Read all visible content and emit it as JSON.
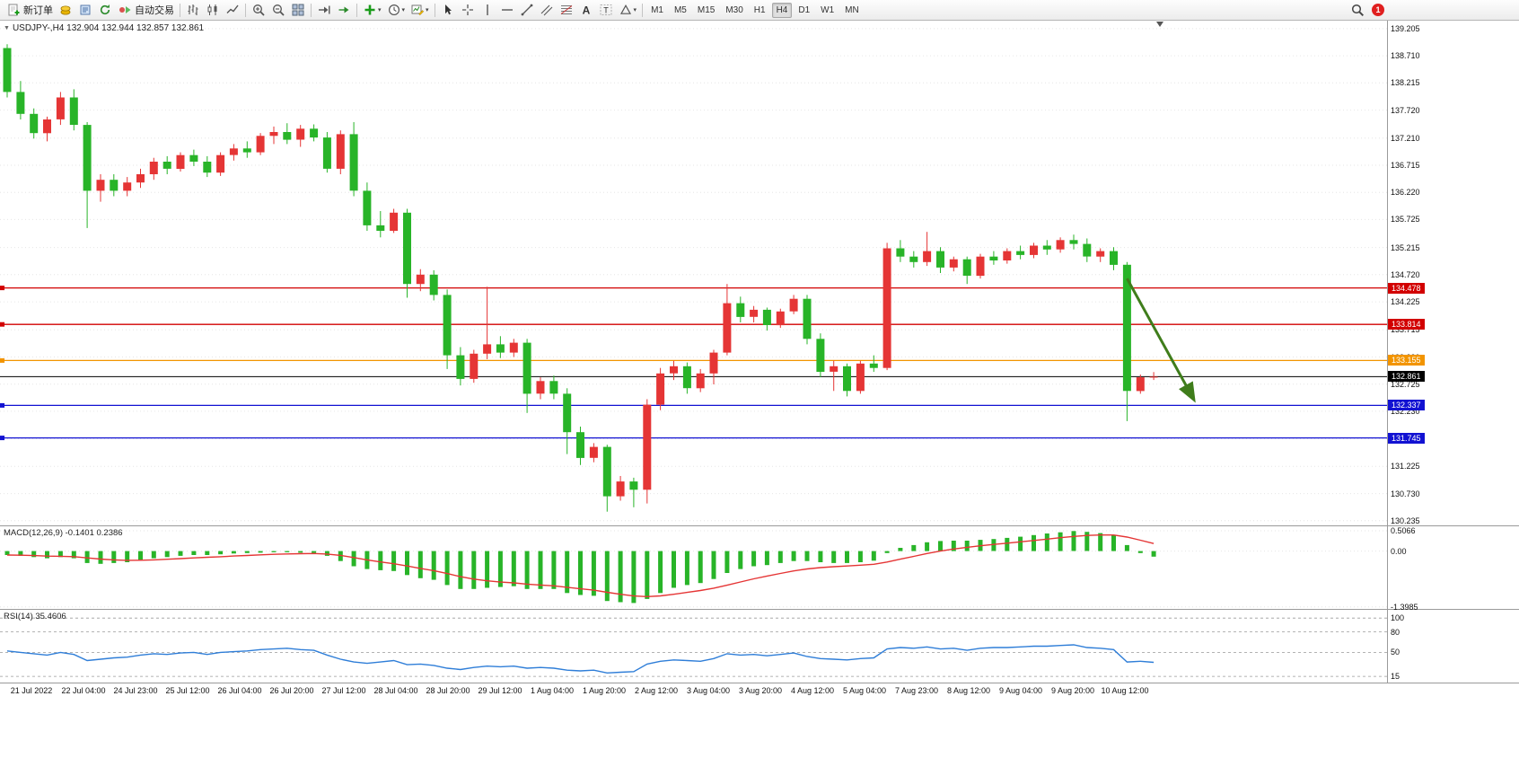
{
  "glyphs": {
    "dropdown_caret": "▾",
    "collapse_arrow": "▼"
  },
  "toolbar": {
    "groups": [
      {
        "name": "trading",
        "items": [
          {
            "name": "new-order-button",
            "icon": "doc-plus",
            "label": "新订单"
          },
          {
            "name": "market-watch-button",
            "icon": "coins"
          },
          {
            "name": "data-window-button",
            "icon": "doc-blue"
          },
          {
            "name": "refresh-button",
            "icon": "refresh"
          },
          {
            "name": "algo-trading-button",
            "icon": "algo",
            "label": "自动交易"
          }
        ]
      },
      {
        "name": "chart-type",
        "items": [
          {
            "name": "bar-chart-button",
            "icon": "bars"
          },
          {
            "name": "candle-chart-button",
            "icon": "candles"
          },
          {
            "name": "line-chart-button",
            "icon": "linechart"
          }
        ]
      },
      {
        "name": "zoom",
        "items": [
          {
            "name": "zoom-in-button",
            "icon": "zoom-in"
          },
          {
            "name": "zoom-out-button",
            "icon": "zoom-out"
          },
          {
            "name": "tile-windows-button",
            "icon": "tile"
          }
        ]
      },
      {
        "name": "scroll",
        "items": [
          {
            "name": "scroll-to-end-button",
            "icon": "scroll-end"
          },
          {
            "name": "auto-scroll-button",
            "icon": "auto-scroll"
          }
        ]
      },
      {
        "name": "chart-tools",
        "items": [
          {
            "name": "indicators-button",
            "icon": "indicator-plus",
            "dropdown": true
          },
          {
            "name": "periods-button",
            "icon": "clock",
            "dropdown": true
          },
          {
            "name": "templates-button",
            "icon": "template",
            "dropdown": true
          }
        ]
      },
      {
        "name": "objects",
        "items": [
          {
            "name": "cursor-button",
            "icon": "cursor"
          },
          {
            "name": "crosshair-button",
            "icon": "crosshair"
          },
          {
            "name": "vertical-line-button",
            "icon": "vline"
          },
          {
            "name": "horizontal-line-button",
            "icon": "hline"
          },
          {
            "name": "trendline-button",
            "icon": "trendline"
          },
          {
            "name": "equidistant-channel-button",
            "icon": "channel"
          },
          {
            "name": "fibonacci-button",
            "icon": "fibo"
          },
          {
            "name": "text-button",
            "icon": "textA"
          },
          {
            "name": "text-label-button",
            "icon": "textT"
          },
          {
            "name": "shapes-button",
            "icon": "shapes",
            "dropdown": true
          }
        ]
      }
    ],
    "timeframes": [
      "M1",
      "M5",
      "M15",
      "M30",
      "H1",
      "H4",
      "D1",
      "W1",
      "MN"
    ],
    "active_timeframe": "H4",
    "notification_count": "1"
  },
  "chart": {
    "title": "USDJPY-,H4 132.904 132.944 132.857 132.861",
    "macd_label": "MACD(12,26,9) -0.1401 0.2386",
    "rsi_label": "RSI(14) 35.4606"
  },
  "colors": {
    "bull": "#e53535",
    "bear": "#28b428",
    "macd_hist": "#28b428",
    "macd_signal": "#e53535",
    "rsi_line": "#2f7ed8",
    "line_red": "#d20000",
    "line_orange": "#f29400",
    "line_blue": "#1212d2",
    "price_black": "#000000",
    "arrow_green": "#3f7d1b",
    "grid": "#e6e6e6",
    "level_dash": "#9a9a9a",
    "separator": "#9a9a9a"
  },
  "chart_data": {
    "type": "candlestick",
    "symbol": "USDJPY-",
    "period": "H4",
    "current_ohlc": {
      "open": 132.904,
      "high": 132.944,
      "low": 132.857,
      "close": 132.861
    },
    "ylim": [
      130.15,
      139.35
    ],
    "y_ticks": [
      "139.205",
      "138.710",
      "138.215",
      "137.720",
      "137.210",
      "136.715",
      "136.220",
      "135.725",
      "135.215",
      "134.720",
      "134.225",
      "133.715",
      "133.220",
      "132.725",
      "132.230",
      "131.730",
      "131.225",
      "130.730",
      "130.235"
    ],
    "candles": [
      [
        138.85,
        138.92,
        137.95,
        138.05
      ],
      [
        138.05,
        138.25,
        137.55,
        137.65
      ],
      [
        137.65,
        137.75,
        137.2,
        137.3
      ],
      [
        137.3,
        137.6,
        137.15,
        137.55
      ],
      [
        137.55,
        138.05,
        137.45,
        137.95
      ],
      [
        137.95,
        138.1,
        137.35,
        137.45
      ],
      [
        137.45,
        137.5,
        135.57,
        136.25
      ],
      [
        136.25,
        136.55,
        136.05,
        136.45
      ],
      [
        136.45,
        136.55,
        136.15,
        136.25
      ],
      [
        136.25,
        136.5,
        136.15,
        136.4
      ],
      [
        136.4,
        136.65,
        136.3,
        136.55
      ],
      [
        136.55,
        136.85,
        136.45,
        136.78
      ],
      [
        136.78,
        136.88,
        136.55,
        136.65
      ],
      [
        136.65,
        136.95,
        136.6,
        136.9
      ],
      [
        136.9,
        137.0,
        136.7,
        136.78
      ],
      [
        136.78,
        136.88,
        136.5,
        136.58
      ],
      [
        136.58,
        136.95,
        136.52,
        136.9
      ],
      [
        136.9,
        137.1,
        136.8,
        137.02
      ],
      [
        137.02,
        137.15,
        136.85,
        136.95
      ],
      [
        136.95,
        137.3,
        136.9,
        137.25
      ],
      [
        137.25,
        137.42,
        137.1,
        137.32
      ],
      [
        137.32,
        137.48,
        137.1,
        137.18
      ],
      [
        137.18,
        137.45,
        137.05,
        137.38
      ],
      [
        137.38,
        137.46,
        137.15,
        137.22
      ],
      [
        137.22,
        137.32,
        136.58,
        136.65
      ],
      [
        136.65,
        137.35,
        136.55,
        137.28
      ],
      [
        137.28,
        137.5,
        136.15,
        136.25
      ],
      [
        136.25,
        136.4,
        135.52,
        135.62
      ],
      [
        135.62,
        135.88,
        135.4,
        135.52
      ],
      [
        135.52,
        135.92,
        135.48,
        135.85
      ],
      [
        135.85,
        135.92,
        134.3,
        134.55
      ],
      [
        134.55,
        134.82,
        134.42,
        134.72
      ],
      [
        134.72,
        134.8,
        134.25,
        134.35
      ],
      [
        134.35,
        134.45,
        133.0,
        133.25
      ],
      [
        133.25,
        133.4,
        132.7,
        132.82
      ],
      [
        132.82,
        133.35,
        132.75,
        133.28
      ],
      [
        133.28,
        134.5,
        133.18,
        133.45
      ],
      [
        133.45,
        133.6,
        133.2,
        133.3
      ],
      [
        133.3,
        133.55,
        133.22,
        133.48
      ],
      [
        133.48,
        133.55,
        132.2,
        132.55
      ],
      [
        132.55,
        132.85,
        132.45,
        132.78
      ],
      [
        132.78,
        132.88,
        132.45,
        132.55
      ],
      [
        132.55,
        132.65,
        131.45,
        131.85
      ],
      [
        131.85,
        131.95,
        131.25,
        131.38
      ],
      [
        131.38,
        131.65,
        131.3,
        131.58
      ],
      [
        131.58,
        131.62,
        130.4,
        130.68
      ],
      [
        130.68,
        131.05,
        130.6,
        130.95
      ],
      [
        130.95,
        131.02,
        130.48,
        130.8
      ],
      [
        130.8,
        132.45,
        130.55,
        132.35
      ],
      [
        132.35,
        133.02,
        132.25,
        132.92
      ],
      [
        132.92,
        133.15,
        132.8,
        133.05
      ],
      [
        133.05,
        133.12,
        132.55,
        132.65
      ],
      [
        132.65,
        133.0,
        132.58,
        132.92
      ],
      [
        132.92,
        133.35,
        132.72,
        133.3
      ],
      [
        133.3,
        134.55,
        133.25,
        134.2
      ],
      [
        134.2,
        134.32,
        133.85,
        133.95
      ],
      [
        133.95,
        134.15,
        133.85,
        134.08
      ],
      [
        134.08,
        134.12,
        133.7,
        133.8
      ],
      [
        133.8,
        134.1,
        133.75,
        134.05
      ],
      [
        134.05,
        134.35,
        134.0,
        134.28
      ],
      [
        134.28,
        134.35,
        133.45,
        133.55
      ],
      [
        133.55,
        133.65,
        132.85,
        132.95
      ],
      [
        132.95,
        133.15,
        132.6,
        133.05
      ],
      [
        133.05,
        133.1,
        132.5,
        132.6
      ],
      [
        132.6,
        133.15,
        132.55,
        133.1
      ],
      [
        133.1,
        133.25,
        132.95,
        133.02
      ],
      [
        133.02,
        135.3,
        132.98,
        135.2
      ],
      [
        135.2,
        135.35,
        134.95,
        135.05
      ],
      [
        135.05,
        135.15,
        134.85,
        134.95
      ],
      [
        134.95,
        135.5,
        134.88,
        135.15
      ],
      [
        135.15,
        135.22,
        134.75,
        134.85
      ],
      [
        134.85,
        135.05,
        134.78,
        135.0
      ],
      [
        135.0,
        135.05,
        134.55,
        134.7
      ],
      [
        134.7,
        135.1,
        134.65,
        135.05
      ],
      [
        135.05,
        135.15,
        134.9,
        134.98
      ],
      [
        134.98,
        135.2,
        134.92,
        135.15
      ],
      [
        135.15,
        135.25,
        135.0,
        135.08
      ],
      [
        135.08,
        135.3,
        135.02,
        135.25
      ],
      [
        135.25,
        135.35,
        135.08,
        135.18
      ],
      [
        135.18,
        135.4,
        135.12,
        135.35
      ],
      [
        135.35,
        135.45,
        135.18,
        135.28
      ],
      [
        135.28,
        135.38,
        134.95,
        135.05
      ],
      [
        135.05,
        135.2,
        134.95,
        135.15
      ],
      [
        135.15,
        135.22,
        134.8,
        134.9
      ],
      [
        134.9,
        134.95,
        132.05,
        132.6
      ],
      [
        132.6,
        132.9,
        132.55,
        132.85
      ],
      [
        132.85,
        132.944,
        132.8,
        132.861
      ]
    ],
    "hlines": [
      {
        "value": 134.478,
        "label": "134.478",
        "color_key": "line_red"
      },
      {
        "value": 133.814,
        "label": "133.814",
        "color_key": "line_red"
      },
      {
        "value": 133.155,
        "label": "133.155",
        "color_key": "line_orange"
      },
      {
        "value": 132.337,
        "label": "132.337",
        "color_key": "line_blue"
      },
      {
        "value": 131.745,
        "label": "131.745",
        "color_key": "line_blue"
      }
    ],
    "current_price": {
      "value": 132.861,
      "label": "132.861",
      "color_key": "price_black"
    },
    "arrow": {
      "from_index": 84,
      "from_price": 134.65,
      "to_index": 89,
      "to_price": 132.45
    },
    "x_labels": [
      "21 Jul 2022",
      "22 Jul 04:00",
      "24 Jul 23:00",
      "25 Jul 12:00",
      "26 Jul 04:00",
      "26 Jul 20:00",
      "27 Jul 12:00",
      "28 Jul 04:00",
      "28 Jul 20:00",
      "29 Jul 12:00",
      "1 Aug 04:00",
      "1 Aug 20:00",
      "2 Aug 12:00",
      "3 Aug 04:00",
      "3 Aug 20:00",
      "4 Aug 12:00",
      "5 Aug 04:00",
      "7 Aug 23:00",
      "8 Aug 12:00",
      "9 Aug 04:00",
      "9 Aug 20:00",
      "10 Aug 12:00"
    ],
    "macd": {
      "params": "12,26,9",
      "main_value": -0.1401,
      "signal_value": 0.2386,
      "ylim": [
        -1.45,
        0.62
      ],
      "axis_labels": [
        "0.5066",
        "0.00",
        "-1.3985"
      ],
      "axis_values": [
        0.5066,
        0,
        -1.3985
      ],
      "histogram": [
        -0.1,
        -0.12,
        -0.15,
        -0.18,
        -0.15,
        -0.18,
        -0.3,
        -0.32,
        -0.3,
        -0.28,
        -0.22,
        -0.18,
        -0.15,
        -0.12,
        -0.1,
        -0.1,
        -0.08,
        -0.06,
        -0.05,
        -0.04,
        -0.03,
        -0.03,
        -0.04,
        -0.05,
        -0.12,
        -0.25,
        -0.38,
        -0.45,
        -0.48,
        -0.5,
        -0.6,
        -0.68,
        -0.72,
        -0.85,
        -0.95,
        -0.95,
        -0.92,
        -0.9,
        -0.88,
        -0.95,
        -0.95,
        -0.95,
        -1.05,
        -1.1,
        -1.12,
        -1.25,
        -1.28,
        -1.3,
        -1.2,
        -1.05,
        -0.92,
        -0.85,
        -0.8,
        -0.7,
        -0.55,
        -0.45,
        -0.38,
        -0.35,
        -0.3,
        -0.25,
        -0.25,
        -0.28,
        -0.3,
        -0.3,
        -0.28,
        -0.24,
        -0.05,
        0.08,
        0.15,
        0.22,
        0.25,
        0.26,
        0.26,
        0.28,
        0.3,
        0.33,
        0.36,
        0.4,
        0.44,
        0.47,
        0.5,
        0.48,
        0.45,
        0.4,
        0.15,
        -0.05,
        -0.14
      ]
    },
    "rsi": {
      "period": 14,
      "value": 35.4606,
      "ylim": [
        6,
        112
      ],
      "levels": [
        100,
        80,
        50,
        15
      ],
      "values": [
        52,
        50,
        48,
        46,
        50,
        47,
        38,
        40,
        42,
        43,
        46,
        48,
        47,
        49,
        50,
        47,
        50,
        51,
        52,
        54,
        55,
        56,
        54,
        53,
        46,
        40,
        36,
        34,
        36,
        38,
        32,
        33,
        31,
        27,
        25,
        28,
        30,
        29,
        30,
        27,
        28,
        27,
        24,
        23,
        24,
        20,
        21,
        22,
        33,
        37,
        39,
        38,
        37,
        41,
        48,
        46,
        47,
        45,
        47,
        49,
        44,
        41,
        40,
        39,
        41,
        42,
        55,
        57,
        56,
        58,
        55,
        56,
        53,
        56,
        57,
        57,
        58,
        59,
        59,
        60,
        61,
        57,
        56,
        54,
        36,
        37,
        35.46
      ]
    }
  }
}
